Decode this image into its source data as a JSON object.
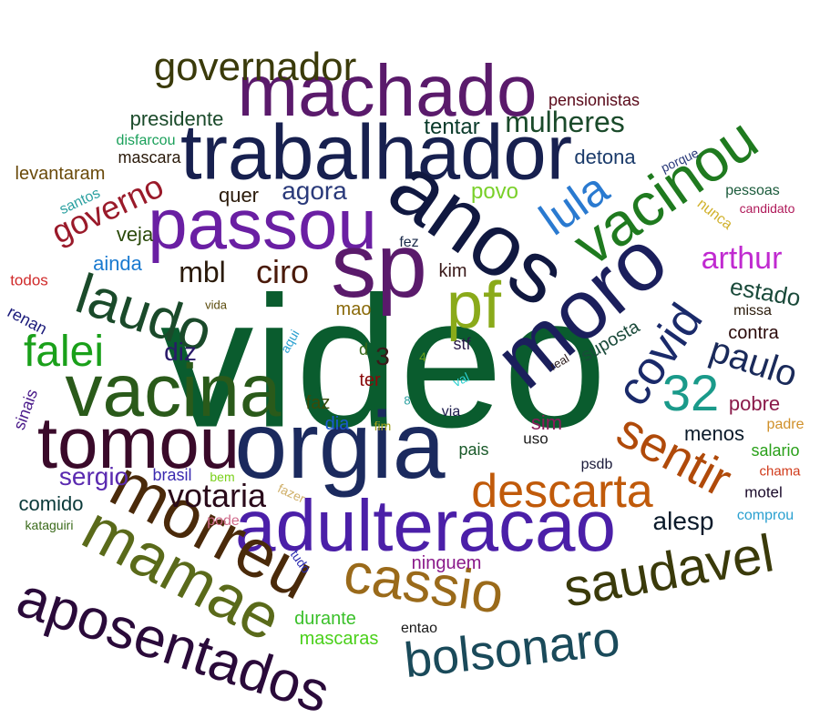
{
  "word_cloud": {
    "words": [
      {
        "text": "video",
        "color": "#0a5c2e"
      },
      {
        "text": "orgia",
        "color": "#1b2a5e"
      },
      {
        "text": "adulteracao",
        "color": "#4b1fa8"
      },
      {
        "text": "trabalhador",
        "color": "#17204f"
      },
      {
        "text": "machado",
        "color": "#5a1a6b"
      },
      {
        "text": "passou",
        "color": "#6a1fa3"
      },
      {
        "text": "sp",
        "color": "#5a1a6b"
      },
      {
        "text": "anos",
        "color": "#101840"
      },
      {
        "text": "moro",
        "color": "#1b1f5c"
      },
      {
        "text": "vacinou",
        "color": "#1f7a1f"
      },
      {
        "text": "vacina",
        "color": "#2a5a1a"
      },
      {
        "text": "tomou",
        "color": "#3a0a2a"
      },
      {
        "text": "morreu",
        "color": "#4a2a0a"
      },
      {
        "text": "mamae",
        "color": "#5a6a1a"
      },
      {
        "text": "aposentados",
        "color": "#2a0a3a"
      },
      {
        "text": "cassio",
        "color": "#9a6a1a"
      },
      {
        "text": "saudavel",
        "color": "#3a3a0a"
      },
      {
        "text": "bolsonaro",
        "color": "#1a4a5a"
      },
      {
        "text": "descarta",
        "color": "#c05a0a"
      },
      {
        "text": "sentir",
        "color": "#b04a0a"
      },
      {
        "text": "covid",
        "color": "#1a2a6a"
      },
      {
        "text": "32",
        "color": "#1a9a8a"
      },
      {
        "text": "pf",
        "color": "#8aaa1a"
      },
      {
        "text": "laudo",
        "color": "#1a4a2a"
      },
      {
        "text": "governador",
        "color": "#3a3a0a"
      },
      {
        "text": "lula",
        "color": "#2a7ad0"
      },
      {
        "text": "falei",
        "color": "#1aa01a"
      },
      {
        "text": "paulo",
        "color": "#1a2a5a"
      },
      {
        "text": "votaria",
        "color": "#2a0a1a"
      },
      {
        "text": "mulheres",
        "color": "#1a4a2a"
      },
      {
        "text": "ciro",
        "color": "#4a1a0a"
      },
      {
        "text": "governo",
        "color": "#9a1a2a"
      },
      {
        "text": "arthur",
        "color": "#c02ad0"
      },
      {
        "text": "mbl",
        "color": "#2a1a0a"
      },
      {
        "text": "agora",
        "color": "#2a3a7a"
      },
      {
        "text": "sergio",
        "color": "#5a2ab0"
      },
      {
        "text": "alesp",
        "color": "#0a1a2a"
      },
      {
        "text": "estado",
        "color": "#1a4a3a"
      },
      {
        "text": "presidente",
        "color": "#1a4a2a"
      },
      {
        "text": "tentar",
        "color": "#0a3a2a"
      },
      {
        "text": "levantaram",
        "color": "#6a4a0a"
      },
      {
        "text": "diz",
        "color": "#2a1a6a"
      },
      {
        "text": "quer",
        "color": "#2a1a0a"
      },
      {
        "text": "povo",
        "color": "#7ad02a"
      },
      {
        "text": "veja",
        "color": "#2a4a0a"
      },
      {
        "text": "ainda",
        "color": "#1a7ad0"
      },
      {
        "text": "contra",
        "color": "#2a0a0a"
      },
      {
        "text": "pobre",
        "color": "#8a1a4a"
      },
      {
        "text": "menos",
        "color": "#0a1a2a"
      },
      {
        "text": "comido",
        "color": "#0a3a3a"
      },
      {
        "text": "detona",
        "color": "#1a3a6a"
      },
      {
        "text": "pensionistas",
        "color": "#5a0a1a"
      },
      {
        "text": "kim",
        "color": "#3a1a1a"
      },
      {
        "text": "suposta",
        "color": "#1a4a3a"
      },
      {
        "text": "mascara",
        "color": "#2a1a0a"
      },
      {
        "text": "disfarcou",
        "color": "#1aa05a"
      },
      {
        "text": "mascaras",
        "color": "#4ad01a"
      },
      {
        "text": "durante",
        "color": "#3ac02a"
      },
      {
        "text": "ninguem",
        "color": "#8a1a8a"
      },
      {
        "text": "brasil",
        "color": "#3a2ab0"
      },
      {
        "text": "renan",
        "color": "#1a1a7a"
      },
      {
        "text": "sinais",
        "color": "#4a1a8a"
      },
      {
        "text": "todos",
        "color": "#d02a2a"
      },
      {
        "text": "santos",
        "color": "#2aa0a0"
      },
      {
        "text": "pessoas",
        "color": "#1a5a3a"
      },
      {
        "text": "candidato",
        "color": "#b01a5a"
      },
      {
        "text": "nunca",
        "color": "#d0b02a"
      },
      {
        "text": "porque",
        "color": "#2a3a7a"
      },
      {
        "text": "missa",
        "color": "#2a1a0a"
      },
      {
        "text": "salario",
        "color": "#2aa01a"
      },
      {
        "text": "padre",
        "color": "#d0902a"
      },
      {
        "text": "chama",
        "color": "#d03a1a"
      },
      {
        "text": "motel",
        "color": "#1a0a2a"
      },
      {
        "text": "comprou",
        "color": "#2aa0d0"
      },
      {
        "text": "psdb",
        "color": "#1a1a3a"
      },
      {
        "text": "mao",
        "color": "#8a6a0a"
      },
      {
        "text": "faz",
        "color": "#3a4a0a"
      },
      {
        "text": "dia",
        "color": "#1a5ad0"
      },
      {
        "text": "ter",
        "color": "#8a0a0a"
      },
      {
        "text": "stf",
        "color": "#2a1a4a"
      },
      {
        "text": "via",
        "color": "#1a1a4a"
      },
      {
        "text": "sim",
        "color": "#8a1a5a"
      },
      {
        "text": "uso",
        "color": "#1a1a1a"
      },
      {
        "text": "pais",
        "color": "#1a5a2a"
      },
      {
        "text": "fez",
        "color": "#1a2a4a"
      },
      {
        "text": "aqui",
        "color": "#2aa0d0"
      },
      {
        "text": "vida",
        "color": "#5a4a0a"
      },
      {
        "text": "fim",
        "color": "#a0a01a"
      },
      {
        "text": "val",
        "color": "#2ad0d0"
      },
      {
        "text": "real",
        "color": "#2a1a1a"
      },
      {
        "text": "bem",
        "color": "#7ad01a"
      },
      {
        "text": "fazer",
        "color": "#d0b06a"
      },
      {
        "text": "pode",
        "color": "#d06a8a"
      },
      {
        "text": "tudo",
        "color": "#2a2ab0"
      },
      {
        "text": "entao",
        "color": "#1a1a1a"
      },
      {
        "text": "kataguiri",
        "color": "#3a6a1a"
      },
      {
        "text": "3",
        "color": "#3a1a1a"
      },
      {
        "text": "d",
        "color": "#3a6a1a"
      },
      {
        "text": "4",
        "color": "#6aa01a"
      },
      {
        "text": "8",
        "color": "#2aa0a0"
      }
    ]
  }
}
